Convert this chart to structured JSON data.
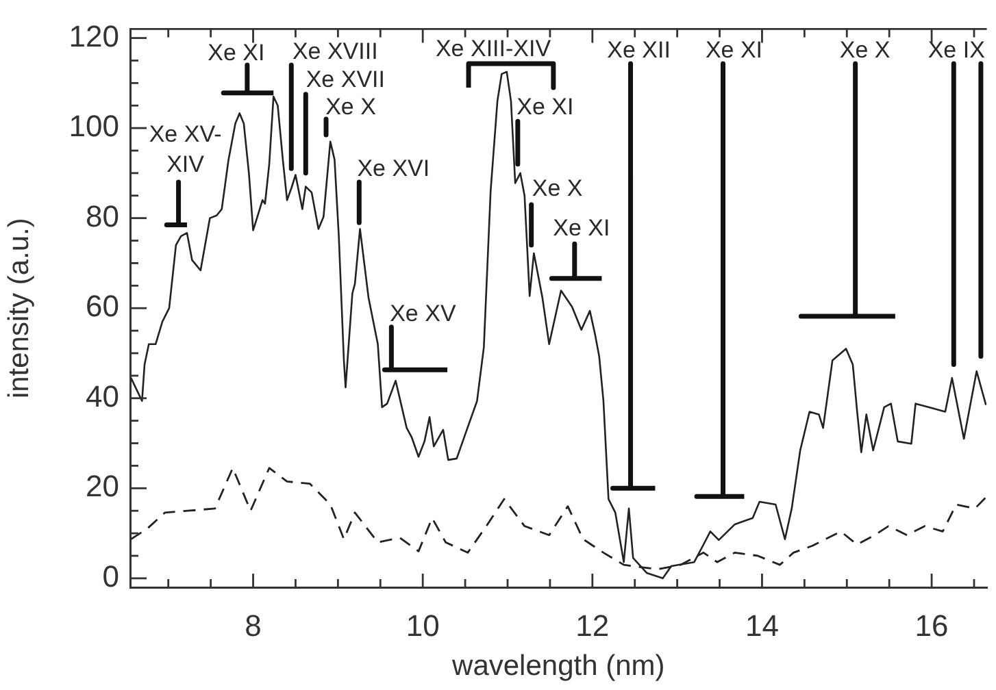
{
  "chart_data": {
    "type": "line",
    "xlabel": "wavelength (nm)",
    "ylabel": "intensity (a.u.)",
    "xlim": [
      6.55,
      16.65
    ],
    "ylim": [
      -2,
      122
    ],
    "xticks": [
      {
        "value": 7,
        "label": null
      },
      {
        "value": 7.5,
        "label": null
      },
      8,
      {
        "value": 8.5,
        "label": null
      },
      {
        "value": 9,
        "label": null
      },
      {
        "value": 9.5,
        "label": null
      },
      10,
      {
        "value": 10.5,
        "label": null
      },
      {
        "value": 11,
        "label": null
      },
      {
        "value": 11.5,
        "label": null
      },
      12,
      {
        "value": 12.5,
        "label": null
      },
      {
        "value": 13,
        "label": null
      },
      {
        "value": 13.5,
        "label": null
      },
      14,
      {
        "value": 14.5,
        "label": null
      },
      {
        "value": 15,
        "label": null
      },
      {
        "value": 15.5,
        "label": null
      },
      16,
      {
        "value": 16.5,
        "label": null
      }
    ],
    "yticks": [
      0,
      {
        "value": 5,
        "label": null
      },
      {
        "value": 10,
        "label": null
      },
      {
        "value": 15,
        "label": null
      },
      20,
      {
        "value": 25,
        "label": null
      },
      {
        "value": 30,
        "label": null
      },
      {
        "value": 35,
        "label": null
      },
      40,
      {
        "value": 45,
        "label": null
      },
      {
        "value": 50,
        "label": null
      },
      {
        "value": 55,
        "label": null
      },
      60,
      {
        "value": 65,
        "label": null
      },
      {
        "value": 70,
        "label": null
      },
      {
        "value": 75,
        "label": null
      },
      80,
      {
        "value": 85,
        "label": null
      },
      {
        "value": 90,
        "label": null
      },
      {
        "value": 95,
        "label": null
      },
      100,
      {
        "value": 105,
        "label": null
      },
      {
        "value": 110,
        "label": null
      },
      {
        "value": 115,
        "label": null
      },
      120
    ],
    "grid": false,
    "legend": false,
    "marker": "none",
    "series": [
      {
        "color": "#222222",
        "line_style": "solid",
        "x": [
          6.56,
          6.69,
          6.72,
          6.77,
          6.85,
          6.93,
          7.01,
          7.09,
          7.15,
          7.22,
          7.28,
          7.38,
          7.49,
          7.57,
          7.63,
          7.71,
          7.79,
          7.84,
          7.89,
          7.95,
          8.0,
          8.05,
          8.11,
          8.14,
          8.19,
          8.24,
          8.29,
          8.35,
          8.4,
          8.45,
          8.5,
          8.58,
          8.62,
          8.69,
          8.77,
          8.83,
          8.91,
          8.96,
          9.01,
          9.07,
          9.09,
          9.17,
          9.2,
          9.26,
          9.36,
          9.47,
          9.52,
          9.58,
          9.68,
          9.81,
          9.87,
          9.95,
          10.02,
          10.08,
          10.13,
          10.24,
          10.3,
          10.4,
          10.51,
          10.64,
          10.72,
          10.8,
          10.88,
          10.93,
          10.99,
          11.04,
          11.09,
          11.15,
          11.2,
          11.26,
          11.31,
          11.41,
          11.49,
          11.63,
          11.76,
          11.87,
          11.97,
          12.03,
          12.08,
          12.13,
          12.19,
          12.27,
          12.37,
          12.43,
          12.48,
          12.64,
          12.83,
          12.93,
          13.2,
          13.31,
          13.39,
          13.49,
          13.68,
          13.89,
          13.97,
          14.16,
          14.27,
          14.35,
          14.45,
          14.56,
          14.67,
          14.72,
          14.83,
          14.99,
          15.07,
          15.12,
          15.17,
          15.23,
          15.31,
          15.44,
          15.52,
          15.6,
          15.76,
          15.81,
          15.97,
          16.16,
          16.24,
          16.38,
          16.53,
          16.64
        ],
        "values": [
          44.5,
          39.4,
          47.5,
          52,
          52,
          57,
          60,
          74,
          76,
          76.7,
          70.7,
          68.4,
          80,
          80.6,
          82,
          93,
          101,
          103.3,
          101,
          90,
          77.3,
          80.3,
          84,
          83.2,
          92,
          107,
          105,
          93,
          84,
          86.6,
          89.6,
          82,
          87,
          85.7,
          77.6,
          80.3,
          97,
          93,
          76,
          48.4,
          42.4,
          63.3,
          65.4,
          77.6,
          62.4,
          52,
          38,
          38.8,
          43.9,
          33.4,
          31.3,
          27,
          30.4,
          35.8,
          29.3,
          33,
          26.3,
          26.6,
          32.5,
          39.4,
          51.3,
          86,
          106,
          112,
          112.5,
          106,
          87.8,
          90,
          85,
          62.7,
          72.2,
          62.4,
          52,
          63.9,
          60.3,
          55.2,
          59.4,
          54.3,
          49.3,
          39.4,
          17.6,
          14.6,
          3.6,
          15.5,
          4.5,
          1.2,
          0,
          2.7,
          3.6,
          7.5,
          10.4,
          8.5,
          12,
          13.4,
          17,
          16.4,
          8.7,
          15.5,
          28.4,
          37,
          36.4,
          33.4,
          48.4,
          51,
          47.5,
          37.3,
          28,
          36.4,
          28.4,
          38,
          38.8,
          30.4,
          29.9,
          38.8,
          38,
          37,
          44.5,
          31,
          46,
          38.5
        ]
      },
      {
        "color": "#222222",
        "line_style": "dashed",
        "x": [
          6.56,
          6.75,
          6.96,
          7.23,
          7.55,
          7.76,
          7.97,
          8.19,
          8.4,
          8.67,
          8.91,
          9.07,
          9.2,
          9.47,
          9.73,
          9.95,
          10.11,
          10.27,
          10.53,
          10.75,
          10.96,
          11.2,
          11.49,
          11.71,
          11.89,
          12.13,
          12.37,
          12.56,
          12.77,
          13.04,
          13.31,
          13.47,
          13.68,
          13.95,
          14.21,
          14.37,
          14.59,
          14.93,
          15.12,
          15.33,
          15.49,
          15.71,
          15.92,
          16.13,
          16.29,
          16.51,
          16.64
        ],
        "values": [
          8.7,
          11,
          14.6,
          15,
          15.5,
          24.5,
          15,
          24.5,
          21.5,
          21,
          16.4,
          8.7,
          14.6,
          8,
          9,
          6,
          13.4,
          8,
          5.7,
          11.6,
          17.6,
          11.6,
          9.6,
          16,
          8.7,
          5.7,
          3,
          2.5,
          2,
          3,
          5.7,
          3.6,
          5.7,
          5,
          3,
          5.7,
          7.2,
          10.4,
          7.5,
          9.6,
          11.6,
          9.6,
          11.6,
          10.4,
          16.4,
          15.5,
          18
        ]
      },
      {
        "color": "#111111",
        "line_style": "solid",
        "x": [
          7.12,
          7.12,
          6.98,
          7.22
        ],
        "values": [
          88,
          78.5,
          78.5,
          78.5
        ]
      },
      {
        "color": "#111111",
        "line_style": "solid",
        "x": [
          7.93,
          7.93,
          7.65,
          8.24
        ],
        "values": [
          114,
          107.8,
          107.8,
          107.8
        ]
      },
      {
        "color": "#111111",
        "line_style": "solid",
        "x": [
          8.45,
          8.45
        ],
        "values": [
          114,
          91
        ]
      },
      {
        "color": "#111111",
        "line_style": "solid",
        "x": [
          8.62,
          8.62
        ],
        "values": [
          107.5,
          90
        ]
      },
      {
        "color": "#111111",
        "line_style": "solid",
        "x": [
          8.86,
          8.86
        ],
        "values": [
          102,
          98.5
        ]
      },
      {
        "color": "#111111",
        "line_style": "solid",
        "x": [
          9.25,
          9.25
        ],
        "values": [
          88,
          79
        ]
      },
      {
        "color": "#111111",
        "line_style": "solid",
        "x": [
          9.63,
          9.63,
          9.55,
          10.29
        ],
        "values": [
          55.8,
          46.3,
          46.3,
          46.3
        ]
      },
      {
        "color": "#111111",
        "line_style": "solid",
        "x": [
          10.54,
          10.54,
          11.54,
          11.54
        ],
        "values": [
          109,
          114.3,
          114.3,
          109
        ]
      },
      {
        "color": "#111111",
        "line_style": "solid",
        "x": [
          11.12,
          11.12
        ],
        "values": [
          101.5,
          92
        ]
      },
      {
        "color": "#111111",
        "line_style": "solid",
        "x": [
          11.28,
          11.28
        ],
        "values": [
          83,
          74
        ]
      },
      {
        "color": "#111111",
        "line_style": "solid",
        "x": [
          11.79,
          11.79,
          11.52,
          12.11
        ],
        "values": [
          74.3,
          66.6,
          66.6,
          66.6
        ]
      },
      {
        "color": "#111111",
        "line_style": "solid",
        "x": [
          12.45,
          12.45,
          12.24,
          12.74
        ],
        "values": [
          114.3,
          20,
          20,
          20
        ]
      },
      {
        "color": "#111111",
        "line_style": "solid",
        "x": [
          13.54,
          13.54,
          13.23,
          13.79
        ],
        "values": [
          114.3,
          18.2,
          18.2,
          18.2
        ]
      },
      {
        "color": "#111111",
        "line_style": "solid",
        "x": [
          15.1,
          15.1,
          14.46,
          15.57
        ],
        "values": [
          114.3,
          58.2,
          58.2,
          58.2
        ]
      },
      {
        "color": "#111111",
        "line_style": "solid",
        "x": [
          16.26,
          16.26
        ],
        "values": [
          114.3,
          47.5
        ]
      },
      {
        "color": "#111111",
        "line_style": "solid",
        "x": [
          16.58,
          16.58
        ],
        "values": [
          114.3,
          49.3
        ]
      }
    ],
    "annotations": [
      "Xe XV-\nXIV",
      "Xe XI",
      "Xe XVIII",
      "Xe XVII",
      "Xe X",
      "Xe XVI",
      "Xe XV",
      "Xe XIII-XIV",
      "Xe XI",
      "Xe X",
      "Xe XI",
      "Xe XII",
      "Xe XI",
      "Xe X",
      "Xe IX"
    ]
  }
}
